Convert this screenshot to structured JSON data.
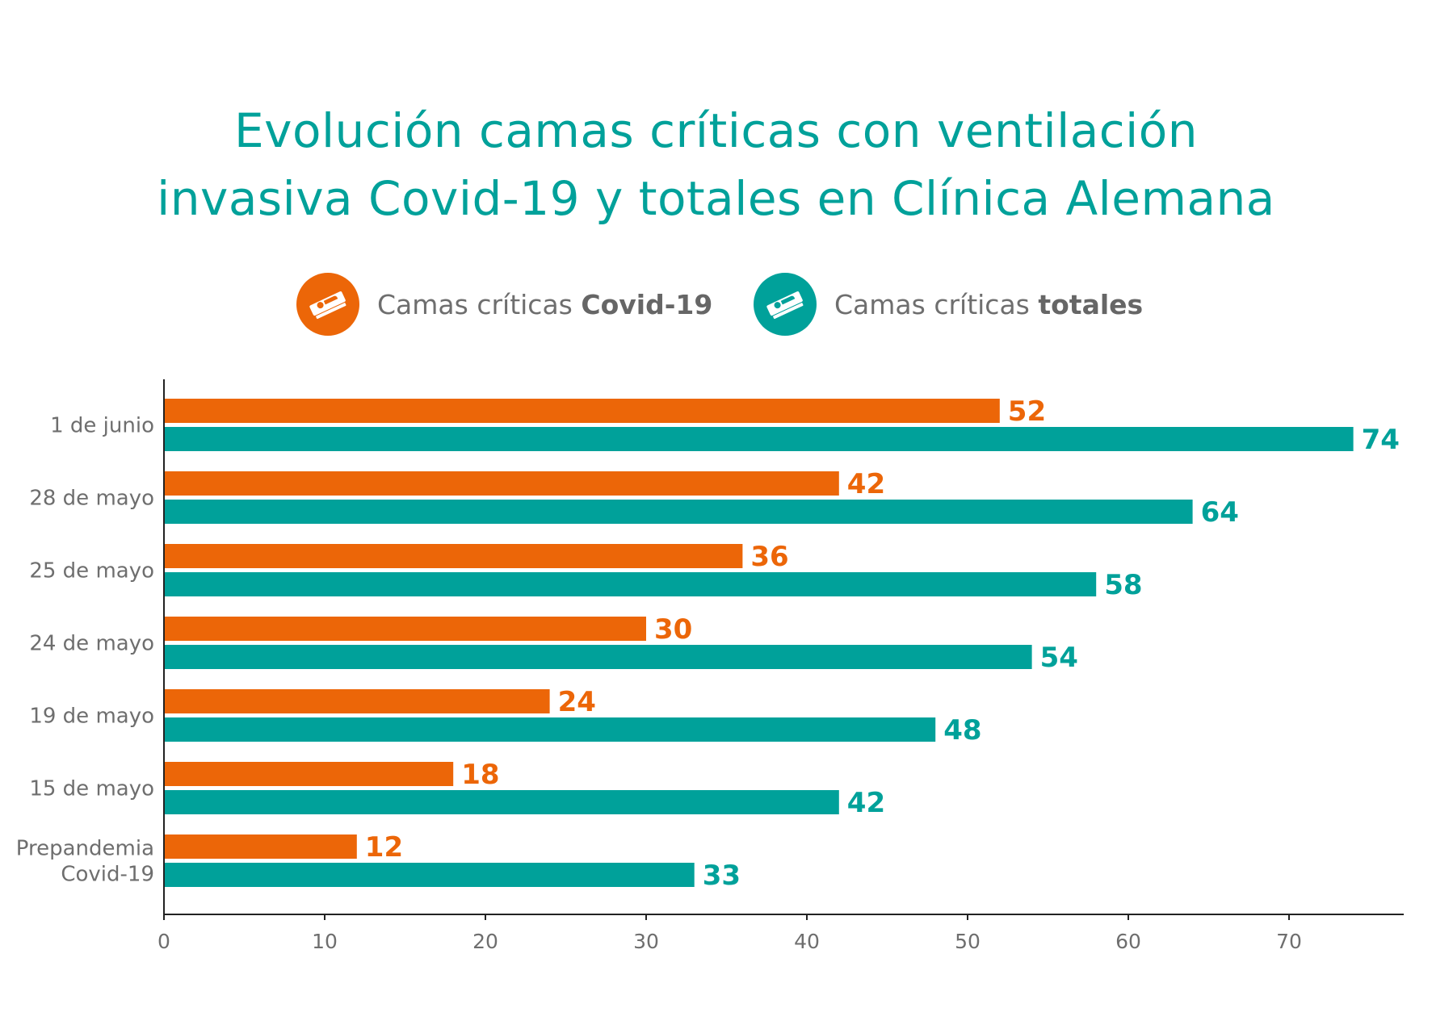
{
  "chart_data": {
    "type": "bar",
    "orientation": "horizontal",
    "title": "Evolución camas críticas con ventilación invasiva Covid-19 y totales en Clínica Alemana",
    "title_lines": [
      "Evolución camas críticas con ventilación",
      "invasiva Covid-19 y totales en Clínica Alemana"
    ],
    "categories": [
      [
        "1 de junio"
      ],
      [
        "28 de mayo"
      ],
      [
        "25 de mayo"
      ],
      [
        "24 de mayo"
      ],
      [
        "19 de mayo"
      ],
      [
        "15 de mayo"
      ],
      [
        "Prepandemia",
        "Covid-19"
      ]
    ],
    "series": [
      {
        "name": "Camas críticas Covid-19",
        "color": "#ec6608",
        "values": [
          52,
          42,
          36,
          30,
          24,
          18,
          12
        ]
      },
      {
        "name": "Camas críticas totales",
        "color": "#00a19a",
        "values": [
          74,
          64,
          58,
          54,
          48,
          42,
          33
        ]
      }
    ],
    "xlim": [
      0,
      77
    ],
    "xticks": [
      0,
      10,
      20,
      30,
      40,
      50,
      60,
      70
    ],
    "xlabel": "",
    "ylabel": "",
    "grid": false,
    "legend_position": "top"
  },
  "legend": [
    {
      "prefix": "Camas críticas ",
      "bold": "Covid-19",
      "color": "#ec6608",
      "icon": "hospital-bed-icon"
    },
    {
      "prefix": "Camas críticas ",
      "bold": "totales",
      "color": "#00a19a",
      "icon": "hospital-bed-icon"
    }
  ]
}
